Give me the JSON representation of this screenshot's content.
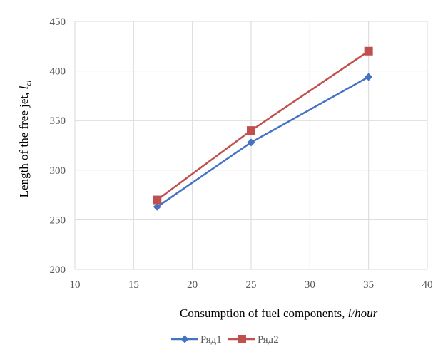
{
  "chart_data": {
    "type": "line",
    "title": "",
    "xlabel": "Consumption  of fuel components,",
    "xlabel_unit": "l/hour",
    "ylabel": "Length of the free jet,",
    "ylabel_symbol": "l",
    "ylabel_subscript": "cl",
    "xlim": [
      10,
      40
    ],
    "ylim": [
      200,
      450
    ],
    "xticks": [
      10,
      15,
      20,
      25,
      30,
      35,
      40
    ],
    "yticks": [
      200,
      250,
      300,
      350,
      400,
      450
    ],
    "grid": true,
    "legend_position": "bottom",
    "series": [
      {
        "name": "Ряд1",
        "color": "#4472c4",
        "marker": "diamond",
        "x": [
          17,
          25,
          35
        ],
        "y": [
          263,
          328,
          394
        ]
      },
      {
        "name": "Ряд2",
        "color": "#c0504d",
        "marker": "square",
        "x": [
          17,
          25,
          35
        ],
        "y": [
          270,
          340,
          420
        ]
      }
    ]
  },
  "colors": {
    "grid": "#d9d9d9",
    "axis_text": "#595959",
    "label_text": "#000000"
  }
}
